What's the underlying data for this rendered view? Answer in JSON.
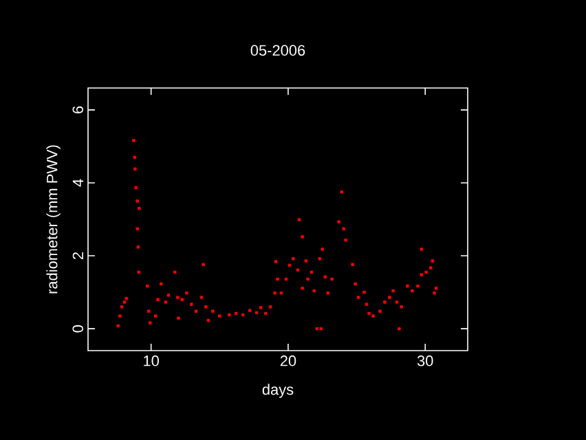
{
  "chart_data": {
    "type": "scatter",
    "title": "05-2006",
    "xlabel": "days",
    "ylabel": "radiometer (mm PWV)",
    "xlim": [
      5.4,
      33.1
    ],
    "ylim": [
      -0.6,
      6.6
    ],
    "xticks": [
      10,
      20,
      30
    ],
    "yticks": [
      0,
      2,
      4,
      6
    ],
    "grid": false,
    "marker": "square",
    "series": [
      {
        "color": "#ff0000",
        "x": [
          7.6,
          7.73,
          7.86,
          8.06,
          8.2,
          8.73,
          8.8,
          8.83,
          8.9,
          9.0,
          9.13,
          9.0,
          9.06,
          9.1,
          9.73,
          9.83,
          9.93,
          10.33,
          10.5,
          10.73,
          11.07,
          11.27,
          11.74,
          11.94,
          12.0,
          12.27,
          12.6,
          12.94,
          13.28,
          13.68,
          13.81,
          14.0,
          14.18,
          14.5,
          15.0,
          15.7,
          16.2,
          16.7,
          17.2,
          17.7,
          18.0,
          18.36,
          18.7,
          19.03,
          19.1,
          19.23,
          19.5,
          19.85,
          20.1,
          20.37,
          20.7,
          20.8,
          21.04,
          21.04,
          21.3,
          21.44,
          21.7,
          21.9,
          22.1,
          22.4,
          22.3,
          22.5,
          22.7,
          22.9,
          23.2,
          23.7,
          23.9,
          24.05,
          24.2,
          24.7,
          24.9,
          25.12,
          25.55,
          25.72,
          25.9,
          26.2,
          26.7,
          27.05,
          27.4,
          27.66,
          27.93,
          28.1,
          28.26,
          28.7,
          29.06,
          29.46,
          29.73,
          29.73,
          30.07,
          30.4,
          30.53,
          30.67,
          30.8
        ],
        "values": [
          0.08,
          0.35,
          0.6,
          0.73,
          0.83,
          5.16,
          4.7,
          4.38,
          3.87,
          3.5,
          3.3,
          2.74,
          2.24,
          1.55,
          1.17,
          0.48,
          0.16,
          0.35,
          0.8,
          1.23,
          0.73,
          0.92,
          1.55,
          0.86,
          0.29,
          0.8,
          0.98,
          0.67,
          0.48,
          0.86,
          1.76,
          0.6,
          0.23,
          0.48,
          0.35,
          0.38,
          0.42,
          0.38,
          0.5,
          0.44,
          0.58,
          0.42,
          0.6,
          0.98,
          1.84,
          1.36,
          0.98,
          1.36,
          1.74,
          1.92,
          1.61,
          2.99,
          2.52,
          1.11,
          1.86,
          1.36,
          1.55,
          1.04,
          0.0,
          0.0,
          1.92,
          2.18,
          1.42,
          0.98,
          1.36,
          2.93,
          3.75,
          2.74,
          2.43,
          1.76,
          1.23,
          0.86,
          1.0,
          0.67,
          0.42,
          0.35,
          0.48,
          0.73,
          0.86,
          1.04,
          0.73,
          0.0,
          0.6,
          1.17,
          1.04,
          1.17,
          1.48,
          2.18,
          1.55,
          1.67,
          1.86,
          0.98,
          1.11
        ]
      }
    ]
  }
}
